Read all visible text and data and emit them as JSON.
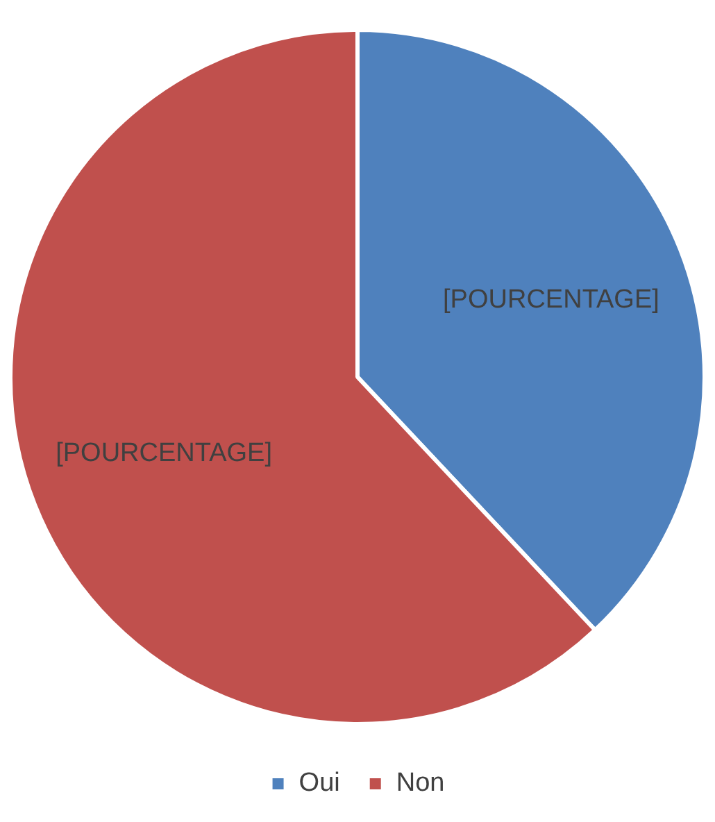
{
  "chart_data": {
    "type": "pie",
    "categories": [
      "Oui",
      "Non"
    ],
    "values": [
      38,
      62
    ],
    "colors": [
      "#4f81bd",
      "#c0504d"
    ],
    "value_labels": [
      "[POURCENTAGE]",
      "[POURCENTAGE]"
    ],
    "legend": "bottom"
  }
}
